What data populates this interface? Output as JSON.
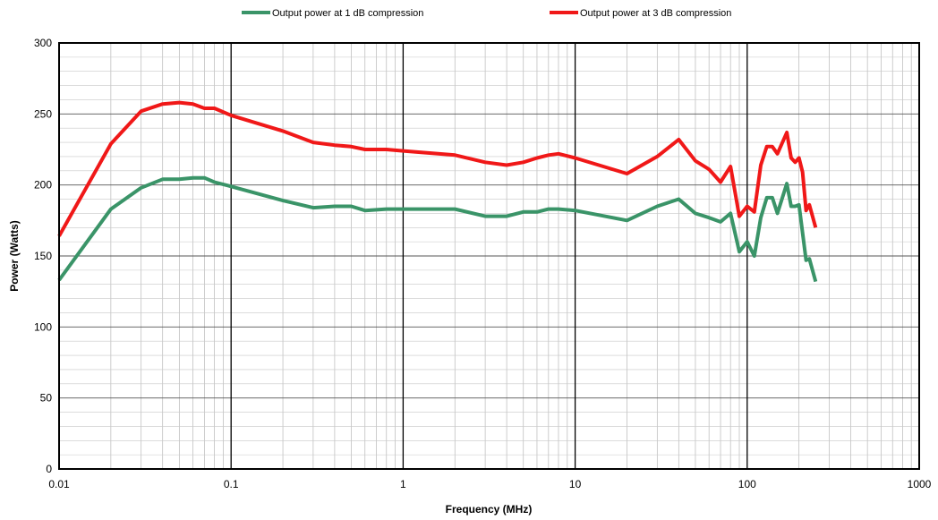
{
  "chart_data": {
    "type": "line",
    "xlabel": "Frequency  (MHz)",
    "ylabel": "Power (Watts)",
    "x_scale": "log",
    "xlim": [
      0.01,
      1000
    ],
    "ylim": [
      0,
      300
    ],
    "x_ticks": [
      {
        "value": 0.01,
        "label": "0.01"
      },
      {
        "value": 0.1,
        "label": "0.1"
      },
      {
        "value": 1,
        "label": "1"
      },
      {
        "value": 10,
        "label": "10"
      },
      {
        "value": 100,
        "label": "100"
      },
      {
        "value": 1000,
        "label": "1000"
      }
    ],
    "y_ticks": [
      {
        "value": 0,
        "label": "0"
      },
      {
        "value": 50,
        "label": "50"
      },
      {
        "value": 100,
        "label": "100"
      },
      {
        "value": 150,
        "label": "150"
      },
      {
        "value": 200,
        "label": "200"
      },
      {
        "value": 250,
        "label": "250"
      },
      {
        "value": 300,
        "label": "300"
      }
    ],
    "grid": true,
    "legend_position": "top",
    "series": [
      {
        "name": "Output power at 1 dB compression",
        "color": "#3a9468",
        "x": [
          0.01,
          0.02,
          0.03,
          0.04,
          0.05,
          0.06,
          0.07,
          0.08,
          0.1,
          0.2,
          0.3,
          0.4,
          0.5,
          0.6,
          0.8,
          1,
          2,
          3,
          4,
          5,
          6,
          7,
          8,
          10,
          20,
          30,
          40,
          50,
          60,
          70,
          80,
          90,
          100,
          110,
          120,
          130,
          140,
          150,
          170,
          180,
          190,
          200,
          220,
          230,
          250
        ],
        "y": [
          133,
          183,
          198,
          204,
          204,
          205,
          205,
          202,
          199,
          189,
          184,
          185,
          185,
          182,
          183,
          183,
          183,
          178,
          178,
          181,
          181,
          183,
          183,
          182,
          175,
          185,
          190,
          180,
          177,
          174,
          180,
          153,
          160,
          150,
          177,
          191,
          191,
          180,
          201,
          185,
          185,
          186,
          147,
          148,
          132
        ]
      },
      {
        "name": "Output power at 3 dB compression",
        "color": "#f01818",
        "x": [
          0.01,
          0.02,
          0.03,
          0.04,
          0.05,
          0.06,
          0.07,
          0.08,
          0.1,
          0.2,
          0.3,
          0.4,
          0.5,
          0.6,
          0.8,
          1,
          2,
          3,
          4,
          5,
          6,
          7,
          8,
          10,
          20,
          30,
          40,
          50,
          60,
          70,
          80,
          90,
          100,
          110,
          120,
          130,
          140,
          150,
          170,
          180,
          190,
          200,
          210,
          220,
          230,
          250
        ],
        "y": [
          164,
          229,
          252,
          257,
          258,
          257,
          254,
          254,
          249,
          238,
          230,
          228,
          227,
          225,
          225,
          224,
          221,
          216,
          214,
          216,
          219,
          221,
          222,
          219,
          208,
          220,
          232,
          217,
          211,
          202,
          213,
          178,
          185,
          181,
          214,
          227,
          227,
          222,
          237,
          219,
          216,
          219,
          209,
          182,
          186,
          170
        ]
      }
    ]
  }
}
